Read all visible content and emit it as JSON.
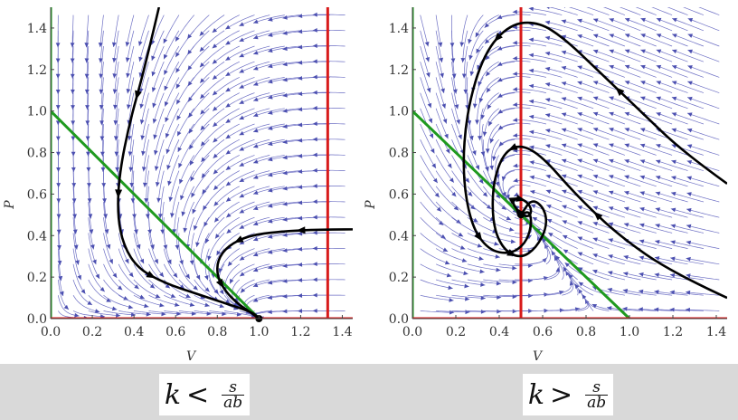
{
  "chart_data": [
    {
      "type": "line",
      "xlabel": "V",
      "ylabel": "P",
      "xlim": [
        0,
        1.45
      ],
      "ylim": [
        0,
        1.5
      ],
      "xticks": [
        "0.0",
        "0.2",
        "0.4",
        "0.6",
        "0.8",
        "1.0",
        "1.2",
        "1.4"
      ],
      "yticks": [
        "0.0",
        "0.2",
        "0.4",
        "0.6",
        "0.8",
        "1.0",
        "1.2",
        "1.4"
      ],
      "caption": {
        "var": "k",
        "relation": "<",
        "num": "s",
        "den": "ab"
      },
      "nullclines": [
        {
          "kind": "line",
          "x": [
            0,
            1.0
          ],
          "y": [
            1.0,
            0
          ],
          "color": "#1f9a1f"
        },
        {
          "kind": "vertical",
          "x": [
            0,
            0
          ],
          "y": [
            0,
            1.5
          ],
          "color": "#1f9a1f"
        },
        {
          "kind": "vertical",
          "x": [
            1.33,
            1.33
          ],
          "y": [
            0,
            1.5
          ],
          "color": "#d81b1b"
        },
        {
          "kind": "horizontal",
          "x": [
            0,
            1.45
          ],
          "y": [
            0,
            0
          ],
          "color": "#d81b1b"
        }
      ],
      "trajectories": [
        {
          "x": [
            0.52,
            0.45,
            0.38,
            0.33,
            0.32,
            0.35,
            0.42,
            0.55,
            0.7,
            0.85,
            0.97,
            1.0
          ],
          "y": [
            1.5,
            1.2,
            0.95,
            0.7,
            0.5,
            0.35,
            0.24,
            0.17,
            0.12,
            0.07,
            0.03,
            0.0
          ]
        },
        {
          "x": [
            1.45,
            1.3,
            1.1,
            0.95,
            0.85,
            0.8,
            0.8,
            0.84,
            0.9,
            0.96,
            1.0
          ],
          "y": [
            0.43,
            0.43,
            0.42,
            0.4,
            0.35,
            0.28,
            0.2,
            0.13,
            0.07,
            0.03,
            0.0
          ]
        }
      ],
      "fixed_point": {
        "x": 1.0,
        "y": 0.0
      }
    },
    {
      "type": "line",
      "xlabel": "V",
      "ylabel": "P",
      "xlim": [
        0,
        1.45
      ],
      "ylim": [
        0,
        1.5
      ],
      "xticks": [
        "0.0",
        "0.2",
        "0.4",
        "0.6",
        "0.8",
        "1.0",
        "1.2",
        "1.4"
      ],
      "yticks": [
        "0.0",
        "0.2",
        "0.4",
        "0.6",
        "0.8",
        "1.0",
        "1.2",
        "1.4"
      ],
      "caption": {
        "var": "k",
        "relation": ">",
        "num": "s",
        "den": "ab"
      },
      "nullclines": [
        {
          "kind": "line",
          "x": [
            0,
            1.0
          ],
          "y": [
            1.0,
            0
          ],
          "color": "#1f9a1f"
        },
        {
          "kind": "vertical",
          "x": [
            0,
            0
          ],
          "y": [
            0,
            1.5
          ],
          "color": "#1f9a1f"
        },
        {
          "kind": "vertical",
          "x": [
            0.5,
            0.5
          ],
          "y": [
            0,
            1.5
          ],
          "color": "#d81b1b"
        },
        {
          "kind": "horizontal",
          "x": [
            0,
            1.45
          ],
          "y": [
            0,
            0
          ],
          "color": "#d81b1b"
        }
      ],
      "trajectories": [
        {
          "x": [
            1.45,
            1.25,
            1.05,
            0.85,
            0.7,
            0.58,
            0.45,
            0.33,
            0.25,
            0.23,
            0.27,
            0.35,
            0.45,
            0.52,
            0.55,
            0.54,
            0.5
          ],
          "y": [
            0.65,
            0.8,
            1.0,
            1.2,
            1.35,
            1.43,
            1.42,
            1.28,
            1.0,
            0.7,
            0.45,
            0.33,
            0.31,
            0.36,
            0.45,
            0.52,
            0.5
          ]
        },
        {
          "x": [
            1.45,
            1.2,
            0.95,
            0.75,
            0.6,
            0.5,
            0.42,
            0.37,
            0.37,
            0.42,
            0.5,
            0.57,
            0.62,
            0.61,
            0.55,
            0.5
          ],
          "y": [
            0.1,
            0.22,
            0.4,
            0.6,
            0.78,
            0.84,
            0.8,
            0.65,
            0.45,
            0.33,
            0.29,
            0.34,
            0.44,
            0.53,
            0.58,
            0.5
          ]
        },
        {
          "x": [
            0.5,
            0.47,
            0.46,
            0.48,
            0.52,
            0.55,
            0.54,
            0.5
          ],
          "y": [
            0.5,
            0.54,
            0.57,
            0.58,
            0.57,
            0.53,
            0.49,
            0.5
          ]
        }
      ],
      "fixed_point": {
        "x": 0.5,
        "y": 0.5
      }
    }
  ]
}
